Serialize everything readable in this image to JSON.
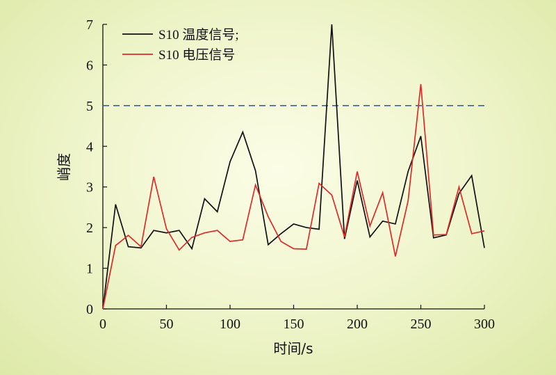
{
  "chart_data": {
    "type": "line",
    "xlabel": "时间/s",
    "ylabel": "峭度",
    "xlim": [
      0,
      300
    ],
    "ylim": [
      0,
      7
    ],
    "x_ticks": [
      "0",
      "50",
      "100",
      "150",
      "200",
      "250",
      "300"
    ],
    "y_ticks": [
      "0",
      "1",
      "2",
      "3",
      "4",
      "5",
      "6",
      "7"
    ],
    "grid": false,
    "legend_position": "top-left",
    "threshold": {
      "value": 5,
      "color": "#3a5fb0",
      "style": "dashed"
    },
    "x": [
      0,
      10,
      20,
      30,
      40,
      50,
      60,
      70,
      80,
      90,
      100,
      110,
      120,
      130,
      140,
      150,
      160,
      170,
      180,
      190,
      200,
      210,
      220,
      230,
      240,
      250,
      260,
      270,
      280,
      290,
      300
    ],
    "series": [
      {
        "name": "S10 温度信号;",
        "color": "#111111",
        "values": [
          0,
          2.57,
          1.53,
          1.5,
          1.93,
          1.87,
          1.93,
          1.48,
          2.71,
          2.39,
          3.62,
          4.35,
          3.4,
          1.58,
          1.85,
          2.09,
          2.0,
          1.96,
          7.0,
          1.72,
          3.16,
          1.77,
          2.16,
          2.09,
          3.38,
          4.25,
          1.75,
          1.82,
          2.84,
          3.28,
          1.5
        ]
      },
      {
        "name": "S10 电压信号",
        "color": "#dd2a2a",
        "values": [
          0,
          1.56,
          1.81,
          1.53,
          3.25,
          1.97,
          1.45,
          1.76,
          1.87,
          1.93,
          1.66,
          1.7,
          3.05,
          2.27,
          1.66,
          1.48,
          1.47,
          3.09,
          2.8,
          1.77,
          3.38,
          2.04,
          2.86,
          1.29,
          2.66,
          5.53,
          1.82,
          1.83,
          3.0,
          1.85,
          1.92
        ]
      }
    ]
  }
}
